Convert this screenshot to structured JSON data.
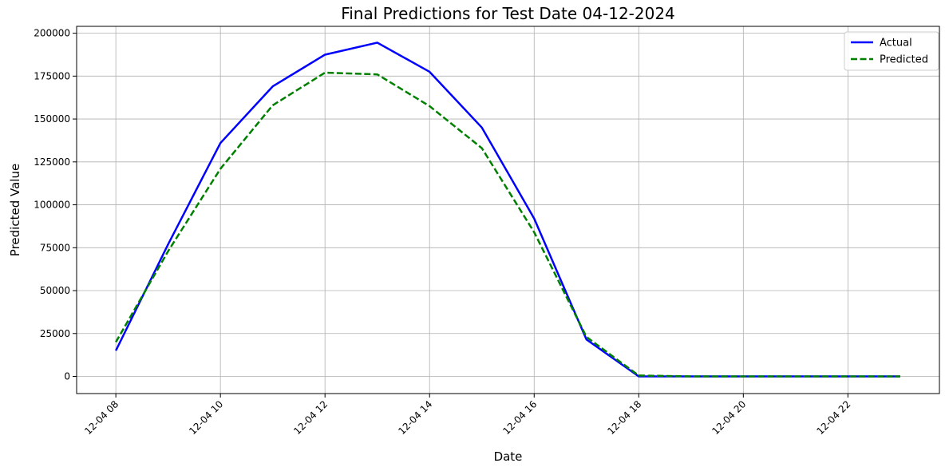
{
  "chart_data": {
    "type": "line",
    "title": "Final Predictions for Test Date 04-12-2024",
    "xlabel": "Date",
    "ylabel": "Predicted Value",
    "x": [
      "2024-12-04 08:00",
      "2024-12-04 09:00",
      "2024-12-04 10:00",
      "2024-12-04 11:00",
      "2024-12-04 12:00",
      "2024-12-04 13:00",
      "2024-12-04 14:00",
      "2024-12-04 15:00",
      "2024-12-04 16:00",
      "2024-12-04 17:00",
      "2024-12-04 18:00",
      "2024-12-04 19:00",
      "2024-12-04 20:00",
      "2024-12-04 21:00",
      "2024-12-04 22:00",
      "2024-12-04 23:00"
    ],
    "series": [
      {
        "name": "Actual",
        "color": "#0000ff",
        "style": "solid",
        "values": [
          15000,
          77000,
          136000,
          169000,
          187500,
          194500,
          177500,
          145000,
          92000,
          21500,
          0,
          0,
          0,
          0,
          0,
          0
        ]
      },
      {
        "name": "Predicted",
        "color": "#008000",
        "style": "dashed",
        "values": [
          20000,
          73000,
          121000,
          158000,
          177000,
          176000,
          157500,
          133000,
          84000,
          23000,
          500,
          0,
          0,
          0,
          0,
          0
        ]
      }
    ],
    "xticks": [
      "12-04 08",
      "12-04 10",
      "12-04 12",
      "12-04 14",
      "12-04 16",
      "12-04 18",
      "12-04 20",
      "12-04 22"
    ],
    "xtick_hours": [
      8,
      10,
      12,
      14,
      16,
      18,
      20,
      22
    ],
    "yticks": [
      0,
      25000,
      50000,
      75000,
      100000,
      125000,
      150000,
      175000,
      200000
    ],
    "ylim": [
      -10000,
      204000
    ],
    "xlim_hours": [
      7.25,
      23.75
    ],
    "grid": true,
    "legend_position": "top-right"
  }
}
